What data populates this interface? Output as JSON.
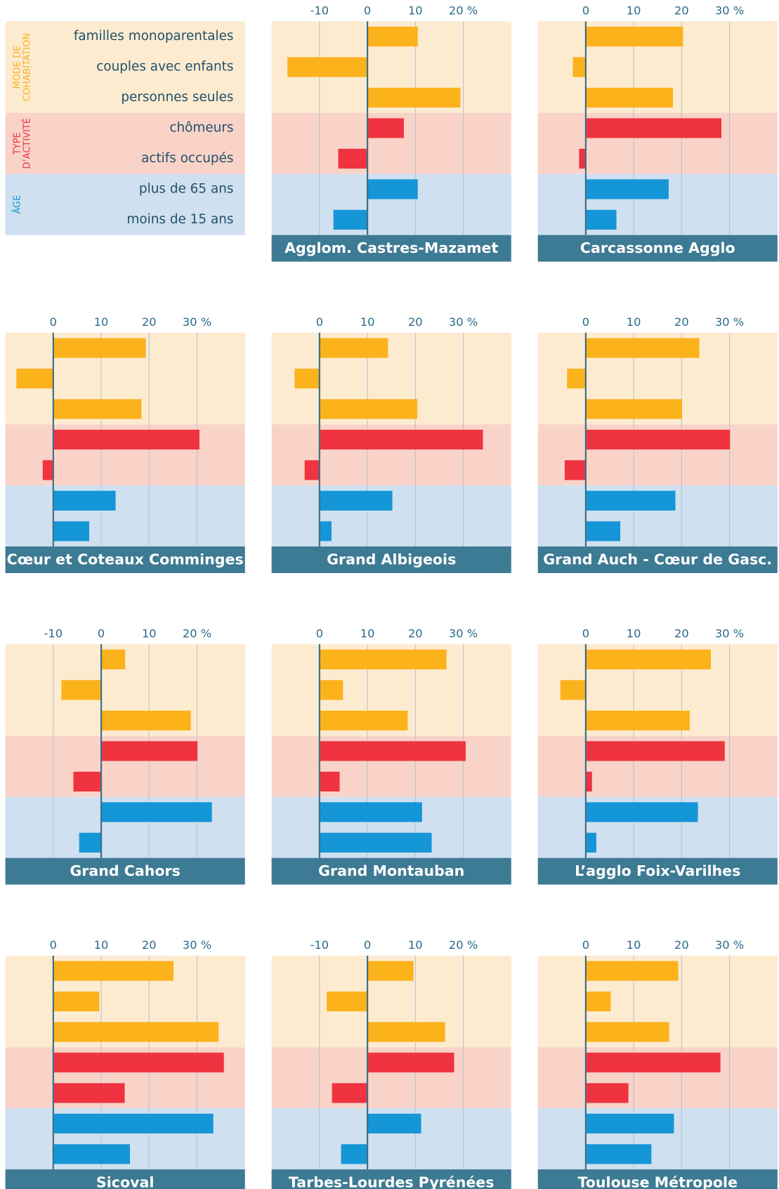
{
  "legend": {
    "groups": [
      {
        "label_lines": [
          "MODE DE",
          "COHABITATION"
        ],
        "color": "#fbb21b",
        "band_color": "#fdebd0",
        "items": [
          "familles monoparentales",
          "couples avec enfants",
          "personnes seules"
        ]
      },
      {
        "label_lines": [
          "TYPE",
          "D’ACTIVITÉ"
        ],
        "color": "#ef3340",
        "band_color": "#f9d3c8",
        "items": [
          "chômeurs",
          "actifs occupés"
        ]
      },
      {
        "label_lines": [
          "ÂGE"
        ],
        "color": "#1596d6",
        "band_color": "#cfe0f0",
        "items": [
          "plus de 65 ans",
          "moins de 15 ans"
        ]
      }
    ]
  },
  "chart_data": [
    {
      "type": "bar",
      "title": "Agglom. Castres-Mazamet",
      "values": [
        10.5,
        -16.7,
        19.4,
        7.6,
        -6.1,
        10.5,
        -7.1
      ],
      "xlim": [
        -20,
        30
      ],
      "xticks": [
        -10,
        0,
        10,
        {
          "value": 20,
          "label": "20 %"
        }
      ]
    },
    {
      "type": "bar",
      "title": "Carcassonne Agglo",
      "values": [
        20.3,
        -2.7,
        18.2,
        28.3,
        -1.4,
        17.3,
        6.4
      ],
      "xlim": [
        -10,
        40
      ],
      "xticks": [
        0,
        10,
        20,
        {
          "value": 30,
          "label": "30 %"
        }
      ]
    },
    {
      "type": "bar",
      "title": "Cœur et Coteaux Comminges",
      "values": [
        19.3,
        -7.7,
        18.4,
        30.5,
        -2.2,
        13.0,
        7.5
      ],
      "xlim": [
        -10,
        40
      ],
      "xticks": [
        0,
        10,
        20,
        {
          "value": 30,
          "label": "30 %"
        }
      ]
    },
    {
      "type": "bar",
      "title": "Grand Albigeois",
      "values": [
        14.3,
        -5.2,
        20.4,
        34.1,
        -3.1,
        15.2,
        2.5
      ],
      "xlim": [
        -10,
        40
      ],
      "xticks": [
        0,
        10,
        20,
        {
          "value": 30,
          "label": "30 %"
        }
      ]
    },
    {
      "type": "bar",
      "title": "Grand Auch - Cœur de Gasc.",
      "values": [
        23.7,
        -3.9,
        20.1,
        30.1,
        -4.4,
        18.7,
        7.2
      ],
      "xlim": [
        -10,
        40
      ],
      "xticks": [
        0,
        10,
        20,
        {
          "value": 30,
          "label": "30 %"
        }
      ]
    },
    {
      "type": "bar",
      "title": "Grand Cahors",
      "values": [
        5.0,
        -8.3,
        18.7,
        20.1,
        -5.8,
        23.1,
        -4.6
      ],
      "xlim": [
        -20,
        30
      ],
      "xticks": [
        -10,
        0,
        10,
        {
          "value": 20,
          "label": "20 %"
        }
      ]
    },
    {
      "type": "bar",
      "title": "Grand Montauban",
      "values": [
        26.5,
        4.9,
        18.4,
        30.5,
        4.2,
        21.4,
        23.4
      ],
      "xlim": [
        -10,
        40
      ],
      "xticks": [
        0,
        10,
        20,
        {
          "value": 30,
          "label": "30 %"
        }
      ]
    },
    {
      "type": "bar",
      "title": "L’agglo Foix-Varilhes",
      "values": [
        26.1,
        -5.3,
        21.7,
        29.0,
        1.3,
        23.4,
        2.2
      ],
      "xlim": [
        -10,
        40
      ],
      "xticks": [
        0,
        10,
        20,
        {
          "value": 30,
          "label": "30 %"
        }
      ]
    },
    {
      "type": "bar",
      "title": "Sicoval",
      "values": [
        25.1,
        9.6,
        34.5,
        35.6,
        14.9,
        33.4,
        16.0
      ],
      "xlim": [
        -10,
        40
      ],
      "xticks": [
        0,
        10,
        20,
        {
          "value": 30,
          "label": "30 %"
        }
      ]
    },
    {
      "type": "bar",
      "title": "Tarbes-Lourdes Pyrénées",
      "values": [
        9.6,
        -8.5,
        16.2,
        18.1,
        -7.4,
        11.2,
        -5.5
      ],
      "xlim": [
        -20,
        30
      ],
      "xticks": [
        -10,
        0,
        10,
        {
          "value": 20,
          "label": "20 %"
        }
      ]
    },
    {
      "type": "bar",
      "title": "Toulouse Métropole",
      "values": [
        19.3,
        5.2,
        17.4,
        28.1,
        8.9,
        18.4,
        13.7
      ],
      "xlim": [
        -10,
        40
      ],
      "xticks": [
        0,
        10,
        20,
        {
          "value": 30,
          "label": "30 %"
        }
      ]
    }
  ]
}
